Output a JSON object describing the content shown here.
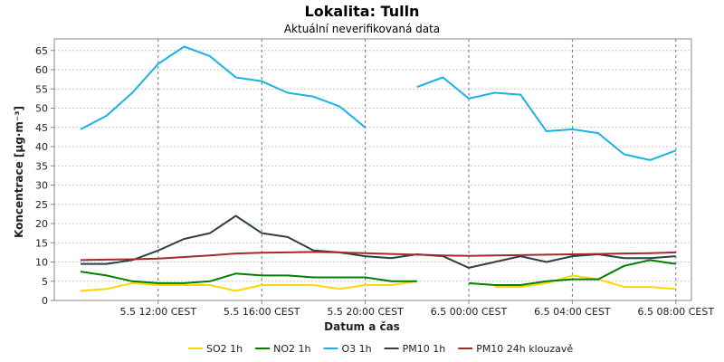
{
  "chart_data": {
    "type": "line",
    "title": "Lokalita: Tulln",
    "subtitle": "Aktuální neverifikovaná data",
    "xlabel": "Datum a čas",
    "ylabel": "Koncentrace [µg·m⁻³]",
    "ylim": [
      0,
      68
    ],
    "yticks": [
      0,
      5,
      10,
      15,
      20,
      25,
      30,
      35,
      40,
      45,
      50,
      55,
      60,
      65
    ],
    "x_ticks": [
      "5.5 12:00 CEST",
      "5.5 16:00 CEST",
      "5.5 20:00 CEST",
      "6.5 00:00 CEST",
      "6.5 04:00 CEST",
      "6.5 08:00 CEST"
    ],
    "x": [
      "5.5 09:00",
      "5.5 10:00",
      "5.5 11:00",
      "5.5 12:00",
      "5.5 13:00",
      "5.5 14:00",
      "5.5 15:00",
      "5.5 16:00",
      "5.5 17:00",
      "5.5 18:00",
      "5.5 19:00",
      "5.5 20:00",
      "5.5 21:00",
      "5.5 22:00",
      "5.5 23:00",
      "6.5 00:00",
      "6.5 01:00",
      "6.5 02:00",
      "6.5 03:00",
      "6.5 04:00",
      "6.5 05:00",
      "6.5 06:00",
      "6.5 07:00",
      "6.5 08:00"
    ],
    "grid": true,
    "legend_position": "bottom",
    "series": [
      {
        "name": "SO2 1h",
        "color": "#ffd700",
        "values": [
          2.5,
          3,
          4.5,
          4,
          4,
          4,
          2.5,
          4,
          4,
          4,
          3,
          4,
          4,
          5,
          null,
          null,
          3.5,
          3.5,
          4.5,
          6.5,
          5.5,
          3.5,
          3.5,
          3
        ]
      },
      {
        "name": "NO2 1h",
        "color": "#008000",
        "values": [
          7.5,
          6.5,
          5,
          4.5,
          4.5,
          5,
          7,
          6.5,
          6.5,
          6,
          6,
          6,
          5,
          5,
          null,
          4.5,
          4,
          4,
          5,
          5.5,
          5.5,
          9,
          10.5,
          9.5
        ]
      },
      {
        "name": "O3 1h",
        "color": "#1ab2e6",
        "values": [
          44.5,
          48,
          54,
          61.5,
          66,
          63.5,
          58,
          57,
          54,
          53,
          50.5,
          45,
          null,
          55.5,
          58,
          52.5,
          54,
          53.5,
          44,
          44.5,
          43.5,
          38,
          36.5,
          39
        ]
      },
      {
        "name": "PM10 1h",
        "color": "#2f3f48",
        "values": [
          9.5,
          9.5,
          10.5,
          13,
          16,
          17.5,
          22,
          17.5,
          16.5,
          13,
          12.5,
          11.5,
          11,
          12,
          11.5,
          8.5,
          10,
          11.5,
          10,
          11.5,
          12,
          11,
          11,
          11.5
        ]
      },
      {
        "name": "PM10 24h klouzavě",
        "color": "#a52a2a",
        "values": [
          10.5,
          10.6,
          10.7,
          10.9,
          11.3,
          11.7,
          12.2,
          12.4,
          12.5,
          12.6,
          12.5,
          12.3,
          12.1,
          11.9,
          11.7,
          11.6,
          11.7,
          11.8,
          11.9,
          12,
          12.1,
          12.2,
          12.3,
          12.5
        ]
      }
    ]
  }
}
